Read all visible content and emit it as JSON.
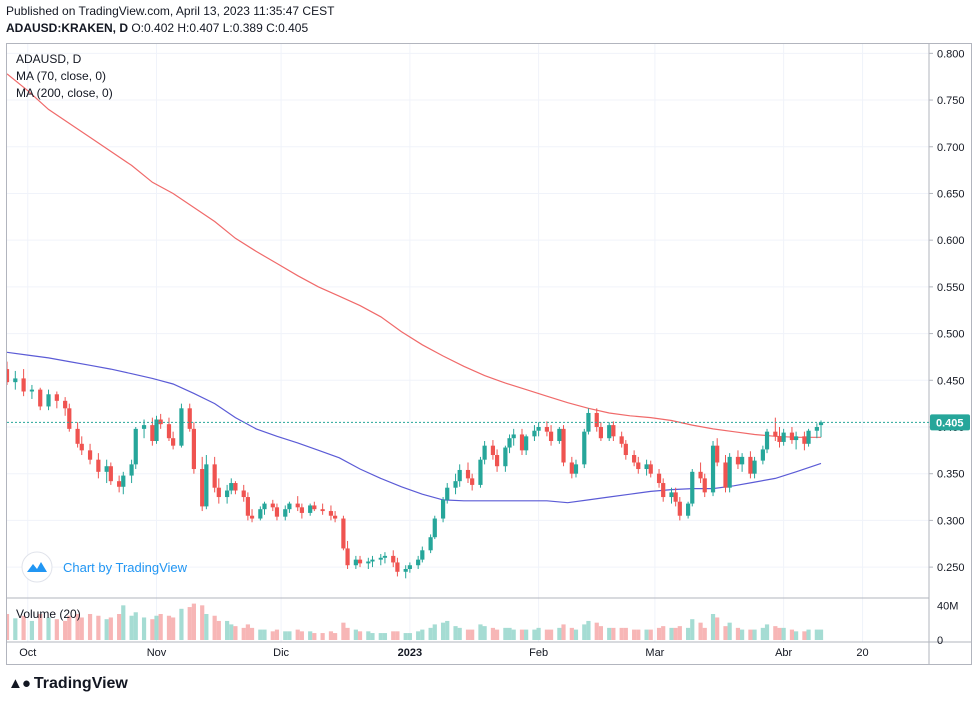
{
  "header": {
    "published": "Published on TradingView.com, April 13, 2023 11:35:47 CEST",
    "symbol": "ADAUSD:KRAKEN, D",
    "ohlc": "O:0.402 H:0.407 L:0.389 C:0.405"
  },
  "legend": {
    "title": "ADAUSD, D",
    "ma70": "MA (70, close, 0)",
    "ma200": "MA (200, close, 0)"
  },
  "watermark": "Chart by TradingView",
  "footer": {
    "brand": "TradingView"
  },
  "colors": {
    "up": "#26a69a",
    "down": "#ef5350",
    "ma70": "#5b5bd6",
    "ma200": "#f06a6a",
    "last": "#26a69a"
  },
  "chart_data": {
    "type": "candlestick",
    "price_axis": {
      "ticks": [
        0.25,
        0.3,
        0.35,
        0.4,
        0.45,
        0.5,
        0.55,
        0.6,
        0.65,
        0.7,
        0.75,
        0.8
      ],
      "range": [
        0.218,
        0.81
      ]
    },
    "last_price": 0.405,
    "last_price_label": "0.405",
    "x_labels": [
      {
        "label": "Oct",
        "day": 5
      },
      {
        "label": "Nov",
        "day": 36
      },
      {
        "label": "Dic",
        "day": 66
      },
      {
        "label": "2023",
        "day": 97
      },
      {
        "label": "Feb",
        "day": 128
      },
      {
        "label": "Mar",
        "day": 156
      },
      {
        "label": "Abr",
        "day": 187
      },
      {
        "label": "20",
        "day": 206
      }
    ],
    "x_range": [
      0,
      222
    ],
    "volume": {
      "title": "Volume (20)",
      "ticks": [
        "40M",
        "0"
      ],
      "max": 45
    },
    "candles": [
      [
        0,
        0.462,
        0.47,
        0.445,
        0.448,
        30
      ],
      [
        2,
        0.448,
        0.46,
        0.44,
        0.452,
        25
      ],
      [
        4,
        0.452,
        0.462,
        0.433,
        0.438,
        28
      ],
      [
        6,
        0.438,
        0.445,
        0.43,
        0.44,
        22
      ],
      [
        8,
        0.44,
        0.442,
        0.418,
        0.422,
        30
      ],
      [
        10,
        0.422,
        0.44,
        0.418,
        0.435,
        26
      ],
      [
        12,
        0.435,
        0.438,
        0.42,
        0.428,
        24
      ],
      [
        14,
        0.428,
        0.432,
        0.412,
        0.42,
        22
      ],
      [
        15,
        0.42,
        0.425,
        0.395,
        0.398,
        28
      ],
      [
        17,
        0.398,
        0.405,
        0.378,
        0.382,
        30
      ],
      [
        18,
        0.382,
        0.39,
        0.37,
        0.375,
        26
      ],
      [
        20,
        0.375,
        0.382,
        0.36,
        0.365,
        30
      ],
      [
        22,
        0.365,
        0.372,
        0.345,
        0.352,
        28
      ],
      [
        24,
        0.352,
        0.365,
        0.34,
        0.358,
        24
      ],
      [
        25,
        0.358,
        0.362,
        0.338,
        0.342,
        26
      ],
      [
        27,
        0.342,
        0.348,
        0.33,
        0.336,
        30
      ],
      [
        28,
        0.336,
        0.352,
        0.328,
        0.348,
        40
      ],
      [
        30,
        0.348,
        0.365,
        0.34,
        0.36,
        28
      ],
      [
        31,
        0.36,
        0.4,
        0.355,
        0.398,
        32
      ],
      [
        33,
        0.398,
        0.408,
        0.388,
        0.402,
        26
      ],
      [
        35,
        0.402,
        0.41,
        0.38,
        0.385,
        24
      ],
      [
        36,
        0.385,
        0.412,
        0.382,
        0.408,
        28
      ],
      [
        37,
        0.408,
        0.414,
        0.398,
        0.403,
        30
      ],
      [
        39,
        0.403,
        0.41,
        0.385,
        0.388,
        28
      ],
      [
        40,
        0.388,
        0.395,
        0.376,
        0.38,
        26
      ],
      [
        42,
        0.38,
        0.425,
        0.378,
        0.42,
        36
      ],
      [
        44,
        0.42,
        0.425,
        0.395,
        0.398,
        38
      ],
      [
        45,
        0.398,
        0.405,
        0.35,
        0.355,
        42
      ],
      [
        47,
        0.355,
        0.368,
        0.31,
        0.315,
        40
      ],
      [
        48,
        0.315,
        0.37,
        0.312,
        0.36,
        30
      ],
      [
        50,
        0.36,
        0.368,
        0.33,
        0.335,
        28
      ],
      [
        51,
        0.335,
        0.345,
        0.318,
        0.325,
        22
      ],
      [
        53,
        0.325,
        0.338,
        0.318,
        0.332,
        22
      ],
      [
        54,
        0.332,
        0.345,
        0.328,
        0.34,
        18
      ],
      [
        55,
        0.34,
        0.342,
        0.328,
        0.332,
        16
      ],
      [
        57,
        0.332,
        0.338,
        0.32,
        0.325,
        14
      ],
      [
        58,
        0.325,
        0.33,
        0.3,
        0.305,
        18
      ],
      [
        59,
        0.305,
        0.312,
        0.298,
        0.302,
        14
      ],
      [
        61,
        0.302,
        0.315,
        0.3,
        0.312,
        12
      ],
      [
        62,
        0.312,
        0.32,
        0.306,
        0.318,
        12
      ],
      [
        64,
        0.318,
        0.322,
        0.31,
        0.314,
        10
      ],
      [
        65,
        0.314,
        0.318,
        0.3,
        0.304,
        12
      ],
      [
        67,
        0.304,
        0.316,
        0.3,
        0.312,
        10
      ],
      [
        68,
        0.312,
        0.32,
        0.308,
        0.318,
        10
      ],
      [
        70,
        0.318,
        0.326,
        0.31,
        0.314,
        12
      ],
      [
        71,
        0.314,
        0.318,
        0.302,
        0.308,
        10
      ],
      [
        73,
        0.308,
        0.318,
        0.305,
        0.316,
        10
      ],
      [
        74,
        0.316,
        0.32,
        0.31,
        0.312,
        8
      ],
      [
        76,
        0.312,
        0.318,
        0.306,
        0.31,
        8
      ],
      [
        78,
        0.31,
        0.316,
        0.3,
        0.305,
        10
      ],
      [
        79,
        0.305,
        0.31,
        0.298,
        0.302,
        8
      ],
      [
        81,
        0.302,
        0.305,
        0.268,
        0.27,
        20
      ],
      [
        82,
        0.27,
        0.278,
        0.248,
        0.252,
        14
      ],
      [
        84,
        0.252,
        0.262,
        0.248,
        0.258,
        12
      ],
      [
        85,
        0.258,
        0.262,
        0.25,
        0.254,
        10
      ],
      [
        87,
        0.254,
        0.26,
        0.248,
        0.256,
        10
      ],
      [
        88,
        0.256,
        0.262,
        0.25,
        0.258,
        8
      ],
      [
        90,
        0.258,
        0.264,
        0.252,
        0.26,
        8
      ],
      [
        91,
        0.26,
        0.266,
        0.254,
        0.262,
        8
      ],
      [
        93,
        0.262,
        0.268,
        0.25,
        0.255,
        10
      ],
      [
        94,
        0.255,
        0.26,
        0.24,
        0.245,
        10
      ],
      [
        96,
        0.245,
        0.252,
        0.238,
        0.248,
        8
      ],
      [
        97,
        0.248,
        0.255,
        0.244,
        0.252,
        8
      ],
      [
        99,
        0.252,
        0.262,
        0.248,
        0.258,
        10
      ],
      [
        100,
        0.258,
        0.272,
        0.255,
        0.268,
        12
      ],
      [
        102,
        0.268,
        0.285,
        0.265,
        0.282,
        14
      ],
      [
        103,
        0.282,
        0.305,
        0.28,
        0.302,
        18
      ],
      [
        105,
        0.302,
        0.325,
        0.298,
        0.322,
        20
      ],
      [
        106,
        0.322,
        0.34,
        0.318,
        0.335,
        22
      ],
      [
        108,
        0.335,
        0.35,
        0.328,
        0.342,
        16
      ],
      [
        109,
        0.342,
        0.36,
        0.336,
        0.354,
        14
      ],
      [
        111,
        0.354,
        0.362,
        0.34,
        0.345,
        12
      ],
      [
        112,
        0.345,
        0.35,
        0.332,
        0.338,
        12
      ],
      [
        114,
        0.338,
        0.368,
        0.335,
        0.365,
        18
      ],
      [
        115,
        0.365,
        0.385,
        0.36,
        0.38,
        16
      ],
      [
        117,
        0.38,
        0.386,
        0.365,
        0.37,
        14
      ],
      [
        118,
        0.37,
        0.376,
        0.352,
        0.358,
        12
      ],
      [
        120,
        0.358,
        0.38,
        0.352,
        0.378,
        14
      ],
      [
        121,
        0.378,
        0.392,
        0.372,
        0.388,
        14
      ],
      [
        122,
        0.388,
        0.398,
        0.38,
        0.392,
        12
      ],
      [
        124,
        0.392,
        0.398,
        0.37,
        0.375,
        12
      ],
      [
        125,
        0.375,
        0.392,
        0.37,
        0.39,
        12
      ],
      [
        127,
        0.39,
        0.402,
        0.385,
        0.396,
        12
      ],
      [
        128,
        0.396,
        0.405,
        0.39,
        0.4,
        14
      ],
      [
        130,
        0.4,
        0.406,
        0.39,
        0.395,
        12
      ],
      [
        131,
        0.395,
        0.402,
        0.38,
        0.385,
        12
      ],
      [
        133,
        0.385,
        0.4,
        0.382,
        0.398,
        14
      ],
      [
        134,
        0.398,
        0.402,
        0.358,
        0.362,
        18
      ],
      [
        136,
        0.362,
        0.368,
        0.345,
        0.35,
        14
      ],
      [
        137,
        0.35,
        0.365,
        0.346,
        0.36,
        12
      ],
      [
        139,
        0.36,
        0.398,
        0.356,
        0.395,
        18
      ],
      [
        140,
        0.395,
        0.42,
        0.392,
        0.415,
        22
      ],
      [
        142,
        0.415,
        0.42,
        0.395,
        0.4,
        20
      ],
      [
        143,
        0.4,
        0.405,
        0.385,
        0.388,
        16
      ],
      [
        145,
        0.388,
        0.405,
        0.385,
        0.402,
        14
      ],
      [
        146,
        0.402,
        0.406,
        0.385,
        0.39,
        14
      ],
      [
        148,
        0.39,
        0.395,
        0.378,
        0.382,
        14
      ],
      [
        149,
        0.382,
        0.386,
        0.365,
        0.37,
        14
      ],
      [
        151,
        0.37,
        0.375,
        0.358,
        0.362,
        12
      ],
      [
        152,
        0.362,
        0.368,
        0.35,
        0.355,
        12
      ],
      [
        154,
        0.355,
        0.365,
        0.348,
        0.36,
        12
      ],
      [
        155,
        0.36,
        0.364,
        0.346,
        0.35,
        12
      ],
      [
        157,
        0.35,
        0.355,
        0.335,
        0.34,
        14
      ],
      [
        158,
        0.34,
        0.345,
        0.32,
        0.325,
        16
      ],
      [
        160,
        0.325,
        0.335,
        0.318,
        0.33,
        14
      ],
      [
        161,
        0.33,
        0.335,
        0.315,
        0.32,
        14
      ],
      [
        162,
        0.32,
        0.325,
        0.3,
        0.305,
        16
      ],
      [
        164,
        0.305,
        0.32,
        0.302,
        0.318,
        14
      ],
      [
        165,
        0.318,
        0.355,
        0.315,
        0.352,
        24
      ],
      [
        167,
        0.352,
        0.362,
        0.34,
        0.345,
        20
      ],
      [
        168,
        0.345,
        0.35,
        0.325,
        0.33,
        14
      ],
      [
        170,
        0.33,
        0.385,
        0.326,
        0.38,
        30
      ],
      [
        171,
        0.38,
        0.388,
        0.358,
        0.362,
        26
      ],
      [
        173,
        0.362,
        0.37,
        0.33,
        0.335,
        16
      ],
      [
        174,
        0.335,
        0.372,
        0.33,
        0.368,
        20
      ],
      [
        176,
        0.368,
        0.375,
        0.355,
        0.36,
        14
      ],
      [
        177,
        0.36,
        0.372,
        0.352,
        0.368,
        12
      ],
      [
        179,
        0.368,
        0.374,
        0.345,
        0.35,
        12
      ],
      [
        180,
        0.35,
        0.368,
        0.345,
        0.364,
        12
      ],
      [
        182,
        0.364,
        0.38,
        0.36,
        0.376,
        14
      ],
      [
        183,
        0.376,
        0.398,
        0.372,
        0.395,
        18
      ],
      [
        185,
        0.395,
        0.41,
        0.385,
        0.39,
        16
      ],
      [
        186,
        0.39,
        0.4,
        0.378,
        0.384,
        14
      ],
      [
        187,
        0.384,
        0.398,
        0.38,
        0.394,
        14
      ],
      [
        189,
        0.394,
        0.4,
        0.382,
        0.386,
        12
      ],
      [
        190,
        0.386,
        0.395,
        0.376,
        0.39,
        10
      ],
      [
        192,
        0.39,
        0.395,
        0.375,
        0.382,
        10
      ],
      [
        193,
        0.382,
        0.398,
        0.379,
        0.396,
        12
      ],
      [
        195,
        0.396,
        0.404,
        0.388,
        0.4,
        12
      ],
      [
        196,
        0.402,
        0.407,
        0.389,
        0.405,
        12
      ]
    ],
    "ma200": [
      [
        0,
        0.778
      ],
      [
        5,
        0.76
      ],
      [
        10,
        0.74
      ],
      [
        20,
        0.71
      ],
      [
        30,
        0.68
      ],
      [
        35,
        0.662
      ],
      [
        40,
        0.65
      ],
      [
        45,
        0.635
      ],
      [
        50,
        0.62
      ],
      [
        55,
        0.602
      ],
      [
        60,
        0.588
      ],
      [
        65,
        0.575
      ],
      [
        70,
        0.562
      ],
      [
        75,
        0.55
      ],
      [
        80,
        0.54
      ],
      [
        85,
        0.53
      ],
      [
        90,
        0.518
      ],
      [
        95,
        0.502
      ],
      [
        100,
        0.488
      ],
      [
        105,
        0.476
      ],
      [
        110,
        0.465
      ],
      [
        115,
        0.455
      ],
      [
        120,
        0.447
      ],
      [
        125,
        0.44
      ],
      [
        130,
        0.433
      ],
      [
        135,
        0.426
      ],
      [
        140,
        0.42
      ],
      [
        145,
        0.415
      ],
      [
        150,
        0.412
      ],
      [
        155,
        0.41
      ],
      [
        160,
        0.407
      ],
      [
        165,
        0.402
      ],
      [
        170,
        0.398
      ],
      [
        175,
        0.395
      ],
      [
        180,
        0.392
      ],
      [
        185,
        0.39
      ],
      [
        190,
        0.389
      ],
      [
        196,
        0.389
      ]
    ],
    "ma70": [
      [
        0,
        0.48
      ],
      [
        5,
        0.477
      ],
      [
        10,
        0.474
      ],
      [
        15,
        0.47
      ],
      [
        20,
        0.466
      ],
      [
        25,
        0.462
      ],
      [
        30,
        0.457
      ],
      [
        35,
        0.452
      ],
      [
        40,
        0.446
      ],
      [
        45,
        0.436
      ],
      [
        50,
        0.425
      ],
      [
        55,
        0.41
      ],
      [
        60,
        0.398
      ],
      [
        65,
        0.39
      ],
      [
        70,
        0.383
      ],
      [
        75,
        0.375
      ],
      [
        80,
        0.367
      ],
      [
        85,
        0.355
      ],
      [
        90,
        0.345
      ],
      [
        95,
        0.336
      ],
      [
        100,
        0.328
      ],
      [
        105,
        0.322
      ],
      [
        110,
        0.321
      ],
      [
        115,
        0.321
      ],
      [
        120,
        0.321
      ],
      [
        125,
        0.321
      ],
      [
        130,
        0.321
      ],
      [
        135,
        0.319
      ],
      [
        140,
        0.322
      ],
      [
        145,
        0.325
      ],
      [
        150,
        0.328
      ],
      [
        155,
        0.331
      ],
      [
        160,
        0.333
      ],
      [
        165,
        0.334
      ],
      [
        170,
        0.334
      ],
      [
        175,
        0.337
      ],
      [
        180,
        0.341
      ],
      [
        185,
        0.345
      ],
      [
        190,
        0.352
      ],
      [
        196,
        0.361
      ]
    ]
  }
}
